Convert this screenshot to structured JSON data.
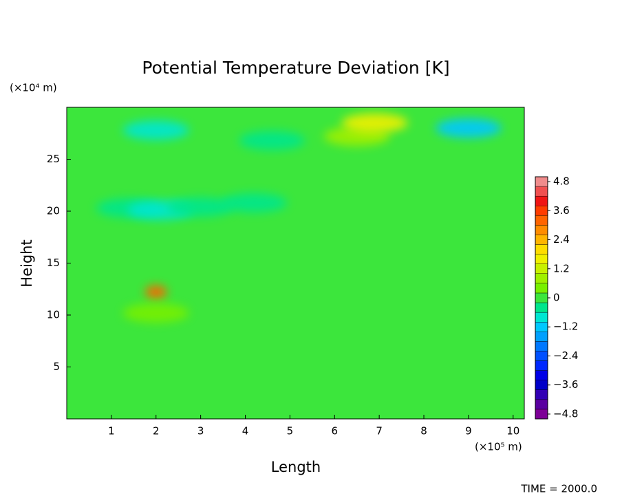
{
  "chart_data": {
    "type": "contour",
    "title": "Potential Temperature Deviation [K]",
    "xlabel": "Length",
    "xunit": "(×10⁵ m)",
    "ylabel": "Height",
    "yunit": "(×10⁴ m)",
    "footer": "TIME = 2000.0",
    "xlim": [
      0,
      10.25
    ],
    "ylim": [
      0,
      30
    ],
    "xticks": [
      1,
      2,
      3,
      4,
      5,
      6,
      7,
      8,
      9,
      10
    ],
    "yticks": [
      5,
      10,
      15,
      20,
      25
    ],
    "field": {
      "background": 0,
      "x": [
        2.0,
        2.0,
        1.4,
        2.1,
        3.0,
        4.2,
        2.0,
        4.6,
        6.5,
        6.9,
        9.0
      ],
      "y": [
        12.2,
        10.2,
        20.3,
        20.1,
        20.4,
        20.8,
        27.8,
        26.8,
        27.2,
        28.5,
        28.0
      ],
      "values": [
        3.0,
        0.6,
        -0.5,
        -1.0,
        -0.6,
        -0.3,
        -0.8,
        -0.6,
        0.8,
        1.5,
        -1.2
      ]
    },
    "colorbar": {
      "clim": [
        -5,
        5
      ],
      "ticks": [
        {
          "value": -4.8,
          "label": "−4.8"
        },
        {
          "value": -3.6,
          "label": "−3.6"
        },
        {
          "value": -2.4,
          "label": "−2.4"
        },
        {
          "value": -1.2,
          "label": "−1.2"
        },
        0,
        1.2,
        2.4,
        3.6,
        4.8
      ],
      "colors": [
        "#7d0096",
        "#5a00a0",
        "#3200b4",
        "#0000c8",
        "#0000e6",
        "#0028ff",
        "#0050ff",
        "#0078ff",
        "#00a0ff",
        "#00c8ff",
        "#00e6d2",
        "#00e68c",
        "#3ce63c",
        "#78f000",
        "#a0f000",
        "#c8f000",
        "#f0f000",
        "#ffdc00",
        "#ffb400",
        "#ff8c00",
        "#ff6400",
        "#ff3c00",
        "#f01414",
        "#f05050",
        "#f08c8c"
      ]
    }
  }
}
